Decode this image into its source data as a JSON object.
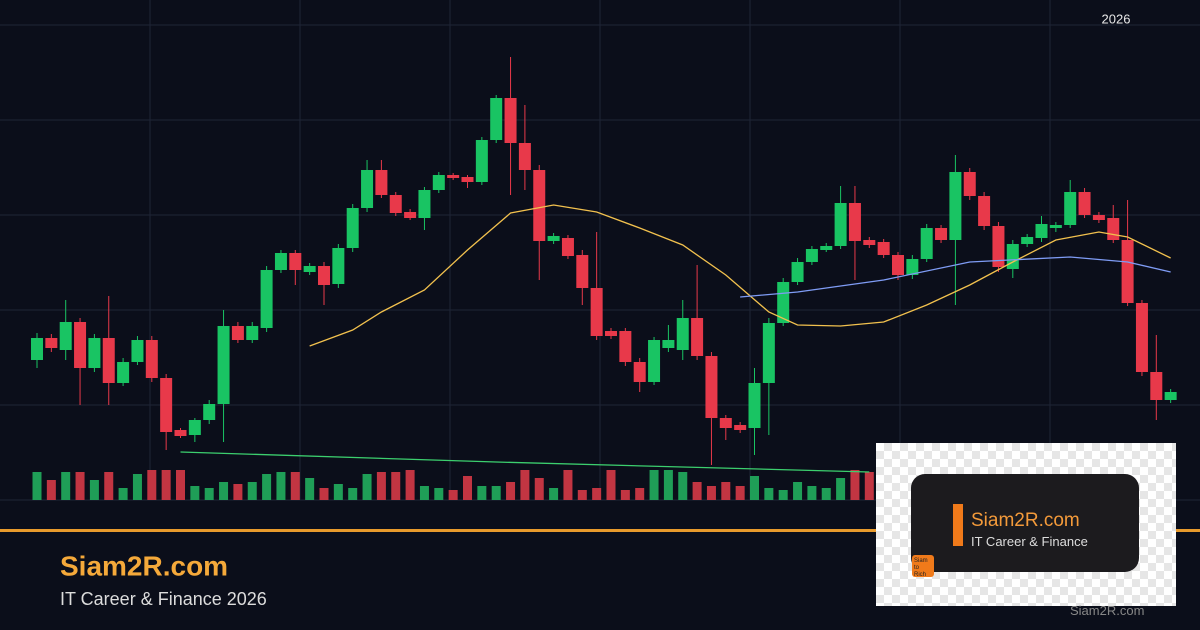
{
  "chart_data": {
    "type": "candlestick",
    "year_label": "2026",
    "ylim": [
      0,
      500
    ],
    "volume_lim": [
      0,
      100
    ],
    "up_color": "#19c463",
    "down_color": "#e8394a",
    "up_volume_color": "#1f9e57",
    "down_volume_color": "#c23542",
    "open": [
      140,
      162,
      150,
      178,
      132,
      162,
      117,
      138,
      160,
      122,
      70,
      65,
      80,
      96,
      174,
      160,
      172,
      230,
      247,
      228,
      234,
      216,
      252,
      292,
      330,
      305,
      288,
      282,
      310,
      325,
      323,
      318,
      360,
      402,
      357,
      330,
      259,
      262,
      245,
      212,
      169,
      169,
      138,
      118,
      152,
      150,
      182,
      144,
      82,
      75,
      72,
      117,
      177,
      218,
      238,
      250,
      254,
      297,
      260,
      258,
      245,
      225,
      241,
      272,
      260,
      328,
      304,
      274,
      231,
      256,
      262,
      272,
      275,
      308,
      285,
      282,
      260,
      197,
      128,
      100
    ],
    "high": [
      167,
      166,
      200,
      182,
      166,
      204,
      142,
      164,
      164,
      126,
      72,
      82,
      100,
      190,
      178,
      178,
      234,
      250,
      250,
      237,
      238,
      256,
      296,
      340,
      340,
      308,
      291,
      313,
      328,
      327,
      325,
      363,
      405,
      443,
      395,
      335,
      267,
      265,
      250,
      268,
      172,
      172,
      142,
      163,
      175,
      200,
      235,
      148,
      85,
      78,
      132,
      182,
      222,
      242,
      254,
      257,
      314,
      314,
      263,
      261,
      248,
      245,
      276,
      275,
      345,
      332,
      308,
      278,
      260,
      266,
      284,
      278,
      320,
      312,
      288,
      295,
      300,
      200,
      165,
      111
    ],
    "low": [
      132,
      148,
      140,
      95,
      128,
      95,
      114,
      135,
      118,
      50,
      62,
      58,
      76,
      58,
      157,
      157,
      168,
      227,
      215,
      225,
      195,
      212,
      248,
      288,
      302,
      284,
      280,
      270,
      307,
      320,
      312,
      315,
      357,
      305,
      310,
      220,
      256,
      241,
      195,
      160,
      161,
      134,
      108,
      115,
      148,
      140,
      140,
      35,
      60,
      67,
      45,
      65,
      174,
      215,
      235,
      248,
      251,
      220,
      252,
      242,
      220,
      221,
      238,
      257,
      195,
      300,
      270,
      228,
      222,
      253,
      258,
      268,
      272,
      282,
      277,
      257,
      194,
      124,
      80,
      97
    ],
    "close": [
      162,
      152,
      178,
      132,
      162,
      117,
      138,
      160,
      122,
      68,
      64,
      80,
      96,
      174,
      160,
      174,
      230,
      247,
      230,
      234,
      215,
      252,
      292,
      330,
      305,
      287,
      282,
      310,
      325,
      322,
      318,
      360,
      402,
      357,
      330,
      259,
      264,
      244,
      212,
      164,
      164,
      138,
      118,
      160,
      160,
      182,
      144,
      82,
      72,
      70,
      117,
      177,
      218,
      238,
      251,
      254,
      297,
      259,
      255,
      245,
      225,
      241,
      272,
      260,
      328,
      304,
      274,
      233,
      256,
      263,
      276,
      275,
      308,
      285,
      280,
      260,
      197,
      128,
      100,
      108
    ],
    "volume": [
      28,
      20,
      28,
      28,
      20,
      28,
      12,
      26,
      30,
      30,
      30,
      14,
      12,
      18,
      16,
      18,
      26,
      28,
      28,
      22,
      12,
      16,
      12,
      26,
      28,
      28,
      30,
      14,
      12,
      10,
      24,
      14,
      14,
      18,
      30,
      22,
      12,
      30,
      10,
      12,
      30,
      10,
      12,
      30,
      30,
      28,
      18,
      14,
      18,
      14,
      24,
      12,
      10,
      18,
      14,
      12,
      22,
      30,
      28,
      30,
      28,
      26,
      24,
      20,
      28,
      24,
      18,
      20,
      16,
      22,
      26,
      20,
      14,
      22,
      24,
      18,
      20,
      22,
      16,
      12
    ],
    "series": [
      {
        "color": "#f2c14e",
        "x": [
          19,
          22,
          24,
          27,
          30,
          33,
          36,
          39,
          42,
          45,
          48,
          51,
          53,
          56,
          59,
          62,
          65,
          68,
          71,
          74,
          76,
          79
        ],
        "values": [
          154,
          170,
          188,
          210,
          250,
          287,
          295,
          288,
          272,
          255,
          225,
          188,
          175,
          174,
          178,
          195,
          215,
          238,
          260,
          268,
          263,
          242
        ]
      },
      {
        "color": "#7f9cf5",
        "x": [
          49,
          53,
          59,
          65,
          72,
          76,
          79
        ],
        "values": [
          203,
          208,
          220,
          238,
          243,
          238,
          228
        ]
      },
      {
        "color": "#3ccf6e",
        "x": [
          10,
          32,
          58
        ],
        "values": [
          48,
          38,
          28
        ]
      }
    ]
  },
  "branding": {
    "title": "Siam2R.com",
    "subtitle": "IT Career & Finance 2026"
  },
  "card": {
    "title": "Siam2R.com",
    "subtitle": "IT Career & Finance",
    "badge": "Siam to Rich"
  },
  "watermark": "Siam2R.com"
}
